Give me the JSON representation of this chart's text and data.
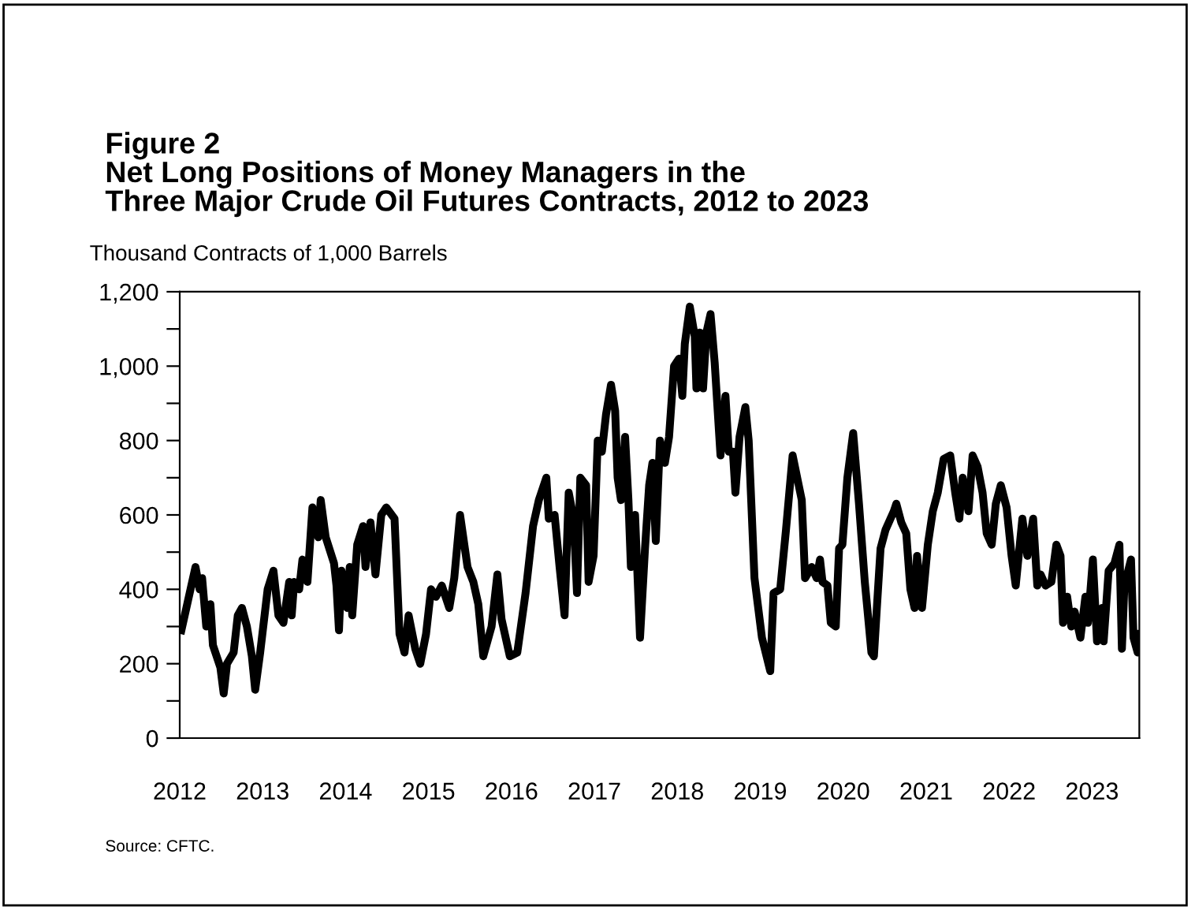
{
  "chart_data": {
    "type": "line",
    "title": "Figure 2\nNet Long Positions of Money Managers in the\nThree Major Crude Oil Futures Contracts, 2012 to 2023",
    "ylabel": "Thousand Contracts of 1,000 Barrels",
    "annotations": [
      "Source: CFTC."
    ],
    "series": [
      {
        "color": "#000000",
        "x": [
          2012.02,
          2012.15,
          2012.19,
          2012.24,
          2012.27,
          2012.32,
          2012.37,
          2012.4,
          2012.49,
          2012.53,
          2012.57,
          2012.65,
          2012.7,
          2012.75,
          2012.81,
          2012.87,
          2012.91,
          2012.97,
          2013.06,
          2013.13,
          2013.19,
          2013.25,
          2013.32,
          2013.35,
          2013.38,
          2013.44,
          2013.48,
          2013.54,
          2013.6,
          2013.67,
          2013.7,
          2013.76,
          2013.86,
          2013.89,
          2013.92,
          2013.95,
          2014.02,
          2014.05,
          2014.08,
          2014.14,
          2014.21,
          2014.24,
          2014.3,
          2014.36,
          2014.43,
          2014.49,
          2014.59,
          2014.65,
          2014.71,
          2014.76,
          2014.84,
          2014.9,
          2014.97,
          2015.03,
          2015.09,
          2015.16,
          2015.25,
          2015.31,
          2015.38,
          2015.47,
          2015.54,
          2015.6,
          2015.66,
          2015.76,
          2015.83,
          2015.88,
          2015.98,
          2016.07,
          2016.17,
          2016.26,
          2016.33,
          2016.42,
          2016.45,
          2016.52,
          2016.58,
          2016.64,
          2016.69,
          2016.75,
          2016.79,
          2016.83,
          2016.9,
          2016.93,
          2016.99,
          2017.04,
          2017.09,
          2017.14,
          2017.2,
          2017.25,
          2017.28,
          2017.32,
          2017.37,
          2017.41,
          2017.44,
          2017.49,
          2017.55,
          2017.61,
          2017.66,
          2017.7,
          2017.74,
          2017.79,
          2017.85,
          2017.9,
          2017.96,
          2018.02,
          2018.06,
          2018.09,
          2018.15,
          2018.21,
          2018.23,
          2018.27,
          2018.31,
          2018.35,
          2018.4,
          2018.45,
          2018.52,
          2018.58,
          2018.62,
          2018.67,
          2018.7,
          2018.75,
          2018.82,
          2018.86,
          2018.93,
          2019.02,
          2019.12,
          2019.16,
          2019.24,
          2019.31,
          2019.39,
          2019.5,
          2019.54,
          2019.62,
          2019.68,
          2019.72,
          2019.75,
          2019.81,
          2019.85,
          2019.91,
          2019.95,
          2019.99,
          2020.05,
          2020.12,
          2020.19,
          2020.26,
          2020.29,
          2020.34,
          2020.37,
          2020.4,
          2020.45,
          2020.51,
          2020.61,
          2020.64,
          2020.7,
          2020.76,
          2020.81,
          2020.86,
          2020.89,
          2020.95,
          2021.02,
          2021.08,
          2021.14,
          2021.21,
          2021.29,
          2021.35,
          2021.4,
          2021.44,
          2021.51,
          2021.56,
          2021.62,
          2021.68,
          2021.73,
          2021.79,
          2021.84,
          2021.9,
          2021.97,
          2022.03,
          2022.08,
          2022.16,
          2022.22,
          2022.29,
          2022.34,
          2022.38,
          2022.44,
          2022.51,
          2022.57,
          2022.62,
          2022.65,
          2022.7,
          2022.75,
          2022.79,
          2022.86,
          2022.92,
          2022.95,
          2023.01,
          2023.06,
          2023.12,
          2023.14,
          2023.2,
          2023.27,
          2023.33,
          2023.36,
          2023.39,
          2023.47,
          2023.5,
          2023.55,
          2023.57
        ],
        "values": [
          290,
          420,
          460,
          400,
          430,
          300,
          360,
          250,
          190,
          120,
          200,
          230,
          330,
          350,
          300,
          220,
          130,
          230,
          400,
          450,
          330,
          310,
          420,
          330,
          420,
          400,
          480,
          420,
          620,
          540,
          640,
          540,
          470,
          410,
          290,
          450,
          350,
          460,
          330,
          520,
          570,
          460,
          580,
          440,
          600,
          620,
          590,
          280,
          230,
          330,
          240,
          200,
          280,
          400,
          380,
          410,
          350,
          430,
          600,
          460,
          420,
          360,
          220,
          300,
          440,
          320,
          220,
          230,
          390,
          570,
          640,
          700,
          590,
          600,
          460,
          330,
          660,
          590,
          390,
          700,
          680,
          420,
          490,
          800,
          770,
          870,
          950,
          880,
          700,
          640,
          810,
          640,
          460,
          600,
          270,
          510,
          680,
          740,
          530,
          800,
          740,
          810,
          1000,
          1020,
          920,
          1060,
          1160,
          1080,
          940,
          1090,
          940,
          1090,
          1140,
          1010,
          760,
          920,
          770,
          770,
          660,
          810,
          890,
          800,
          430,
          270,
          180,
          390,
          400,
          560,
          760,
          640,
          430,
          460,
          430,
          480,
          420,
          410,
          310,
          300,
          510,
          520,
          700,
          820,
          630,
          420,
          350,
          230,
          220,
          330,
          510,
          560,
          610,
          630,
          580,
          550,
          400,
          350,
          490,
          350,
          520,
          610,
          660,
          750,
          760,
          660,
          590,
          700,
          610,
          760,
          730,
          660,
          550,
          520,
          630,
          680,
          620,
          490,
          410,
          590,
          490,
          590,
          410,
          440,
          410,
          420,
          520,
          490,
          310,
          380,
          300,
          340,
          270,
          380,
          310,
          480,
          260,
          350,
          260,
          450,
          470,
          520,
          240,
          410,
          480,
          270,
          230,
          280
        ]
      }
    ],
    "xlim": [
      2012,
      2023.57
    ],
    "xticks": [
      2012,
      2013,
      2014,
      2015,
      2016,
      2017,
      2018,
      2019,
      2020,
      2021,
      2022,
      2023
    ],
    "ylim": [
      0,
      1200
    ],
    "yticks": [
      {
        "value": 0,
        "label": "0"
      },
      {
        "value": 100,
        "label": null
      },
      {
        "value": 200,
        "label": "200"
      },
      {
        "value": 300,
        "label": null
      },
      {
        "value": 400,
        "label": "400"
      },
      {
        "value": 500,
        "label": null
      },
      {
        "value": 600,
        "label": "600"
      },
      {
        "value": 700,
        "label": null
      },
      {
        "value": 800,
        "label": "800"
      },
      {
        "value": 900,
        "label": null
      },
      {
        "value": 1000,
        "label": "1,000"
      },
      {
        "value": 1100,
        "label": null
      },
      {
        "value": 1200,
        "label": "1,200"
      }
    ],
    "grid": false,
    "legend": false,
    "marker": "none",
    "line_style": "solid"
  }
}
